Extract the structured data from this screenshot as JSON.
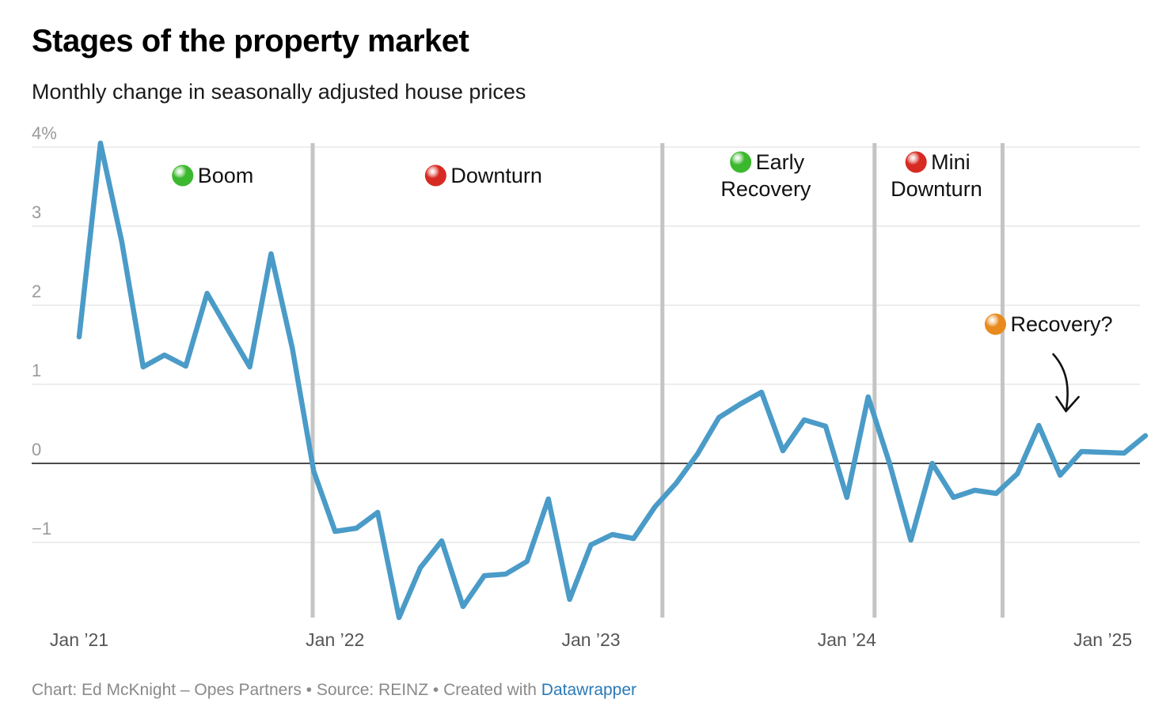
{
  "title": "Stages of the property market",
  "subtitle": "Monthly change in seasonally adjusted house prices",
  "footer": {
    "prefix": "Chart: Ed McKnight – Opes Partners • Source: REINZ • Created with ",
    "link_text": "Datawrapper"
  },
  "colors": {
    "line": "#4a9bc8",
    "stage_line": "#c4c4c4",
    "green": "#3cb82e",
    "red": "#d62a22",
    "orange": "#e88a1d"
  },
  "chart_data": {
    "type": "line",
    "title": "Stages of the property market",
    "subtitle": "Monthly change in seasonally adjusted house prices",
    "xlabel": "",
    "ylabel": "",
    "ylim": [
      -1.95,
      4.05
    ],
    "xlim": [
      0,
      49
    ],
    "y_ticks": [
      {
        "value": 4,
        "label": "4%"
      },
      {
        "value": 3,
        "label": "3"
      },
      {
        "value": 2,
        "label": "2"
      },
      {
        "value": 1,
        "label": "1"
      },
      {
        "value": 0,
        "label": "0"
      },
      {
        "value": -1,
        "label": "−1"
      }
    ],
    "x_ticks": [
      {
        "index": 0,
        "label": "Jan ’21"
      },
      {
        "index": 12,
        "label": "Jan ’22"
      },
      {
        "index": 24,
        "label": "Jan ’23"
      },
      {
        "index": 36,
        "label": "Jan ’24"
      },
      {
        "index": 48,
        "label": "Jan ’25"
      }
    ],
    "series": [
      {
        "name": "Monthly change in seasonally adjusted house prices (%)",
        "values": [
          1.6,
          4.05,
          2.8,
          1.22,
          1.37,
          1.23,
          2.15,
          1.68,
          1.22,
          2.65,
          1.45,
          -0.1,
          -0.86,
          -0.82,
          -0.62,
          -1.95,
          -1.32,
          -0.98,
          -1.81,
          -1.42,
          -1.4,
          -1.24,
          -0.45,
          -1.72,
          -1.03,
          -0.9,
          -0.95,
          -0.55,
          -0.25,
          0.12,
          0.58,
          0.75,
          0.9,
          0.16,
          0.55,
          0.47,
          -0.43,
          0.84,
          0.0,
          -0.97,
          0.0,
          -0.43,
          -0.34,
          -0.38,
          -0.13,
          0.48,
          -0.15,
          0.15,
          0.14,
          0.13,
          0.35
        ]
      }
    ],
    "stage_dividers": [
      10.95,
      27.35,
      37.3,
      43.3
    ],
    "stages": [
      {
        "name": "Boom",
        "lines": [
          "Boom"
        ],
        "dot": "green",
        "center_index": 6.2,
        "value": 3.55
      },
      {
        "name": "Downturn",
        "lines": [
          "Downturn"
        ],
        "dot": "red",
        "center_index": 18.9,
        "value": 3.55
      },
      {
        "name": "Early Recovery",
        "lines": [
          "Early",
          "Recovery"
        ],
        "dot": "green",
        "center_index": 32.2,
        "value": 3.72
      },
      {
        "name": "Mini Downturn",
        "lines": [
          "Mini",
          "Downturn"
        ],
        "dot": "red",
        "center_index": 40.2,
        "value": 3.72
      },
      {
        "name": "Recovery?",
        "lines": [
          "Recovery?"
        ],
        "dot": "orange",
        "center_index": 45.4,
        "value": 1.67
      }
    ]
  }
}
